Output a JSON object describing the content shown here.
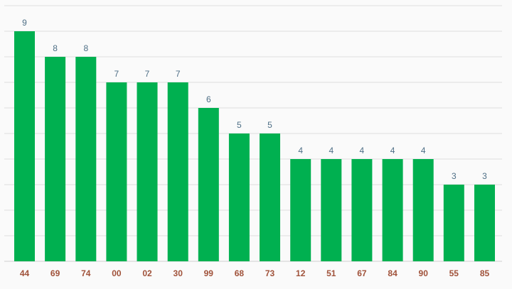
{
  "chart_data": {
    "type": "bar",
    "categories": [
      "44",
      "69",
      "74",
      "00",
      "02",
      "30",
      "99",
      "68",
      "73",
      "12",
      "51",
      "67",
      "84",
      "90",
      "55",
      "85"
    ],
    "values": [
      9,
      8,
      8,
      7,
      7,
      7,
      6,
      5,
      5,
      4,
      4,
      4,
      4,
      4,
      3,
      3
    ],
    "title": "",
    "xlabel": "",
    "ylabel": "",
    "ylim": [
      0,
      10
    ],
    "grid": true,
    "bar_color": "#00b050",
    "value_label_color": "#4e6f86",
    "tick_label_color": "#a0523a"
  }
}
